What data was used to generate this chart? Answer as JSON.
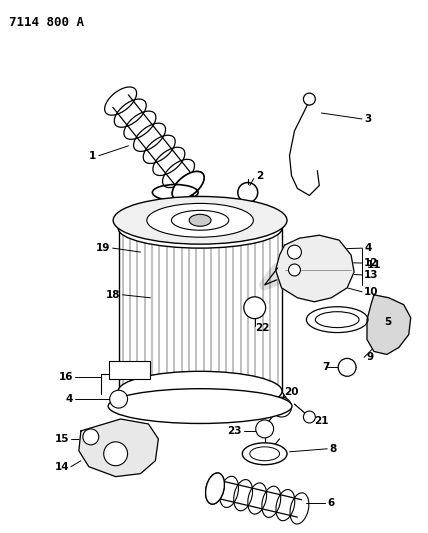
{
  "title": "7114 800 A",
  "bg_color": "#ffffff",
  "line_color": "#000000",
  "title_fontsize": 9,
  "label_fontsize": 7.5,
  "fig_width": 4.28,
  "fig_height": 5.33,
  "dpi": 100
}
